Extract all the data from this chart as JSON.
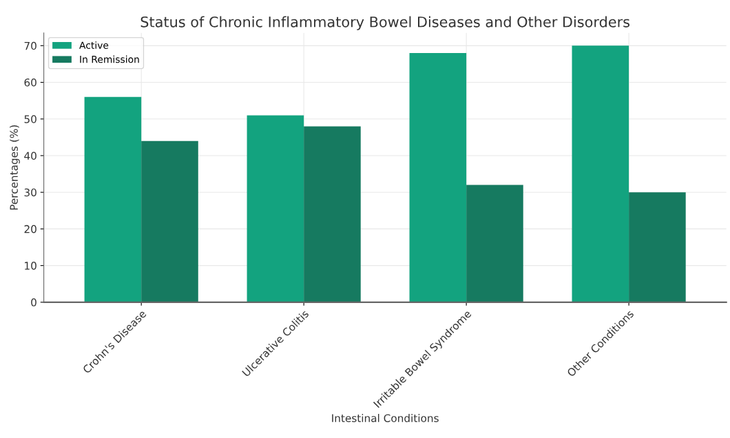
{
  "chart_data": {
    "type": "bar",
    "title": "Status of Chronic Inflammatory Bowel Diseases and Other Disorders",
    "xlabel": "Intestinal Conditions",
    "ylabel": "Percentages (%)",
    "categories": [
      "Crohn's Disease",
      "Ulcerative Colitis",
      "Irritable Bowel Syndrome",
      "Other Conditions"
    ],
    "series": [
      {
        "name": "Active",
        "color": "#13a37f",
        "values": [
          56,
          51,
          68,
          70
        ]
      },
      {
        "name": "In Remission",
        "color": "#167a60",
        "values": [
          44,
          48,
          32,
          30
        ]
      }
    ],
    "ylim": [
      0,
      73.5
    ],
    "yticks": [
      0,
      10,
      20,
      30,
      40,
      50,
      60,
      70
    ],
    "grid": true,
    "legend": "top left"
  }
}
